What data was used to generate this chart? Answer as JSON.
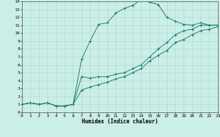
{
  "xlabel": "Humidex (Indice chaleur)",
  "xlim": [
    0,
    23
  ],
  "ylim": [
    0,
    14
  ],
  "xticks": [
    0,
    1,
    2,
    3,
    4,
    5,
    6,
    7,
    8,
    9,
    10,
    11,
    12,
    13,
    14,
    15,
    16,
    17,
    18,
    19,
    20,
    21,
    22,
    23
  ],
  "yticks": [
    0,
    1,
    2,
    3,
    4,
    5,
    6,
    7,
    8,
    9,
    10,
    11,
    12,
    13,
    14
  ],
  "bg_color": "#cceee8",
  "grid_major_color": "#aaddcc",
  "grid_minor_color": "#bbddd8",
  "line_color": "#1a7a6a",
  "line1_x": [
    0,
    1,
    2,
    3,
    4,
    5,
    6,
    7,
    8,
    9,
    10,
    11,
    12,
    13,
    14,
    15,
    16,
    17,
    18,
    19,
    20,
    21,
    22,
    23
  ],
  "line1_y": [
    1.0,
    1.2,
    1.0,
    1.2,
    0.8,
    0.8,
    1.0,
    6.7,
    9.0,
    11.1,
    11.3,
    12.5,
    13.1,
    13.5,
    14.2,
    13.9,
    13.6,
    12.0,
    11.5,
    11.1,
    11.0,
    11.3,
    11.0,
    11.0
  ],
  "line2_x": [
    0,
    1,
    2,
    3,
    4,
    5,
    6,
    7,
    8,
    9,
    10,
    11,
    12,
    13,
    14,
    15,
    16,
    17,
    18,
    19,
    20,
    21,
    22,
    23
  ],
  "line2_y": [
    1.0,
    1.2,
    1.0,
    1.2,
    0.8,
    0.8,
    1.0,
    4.5,
    4.3,
    4.5,
    4.5,
    4.8,
    5.0,
    5.5,
    6.0,
    7.0,
    8.0,
    8.8,
    9.8,
    10.3,
    10.5,
    11.0,
    11.0,
    11.0
  ],
  "line3_x": [
    0,
    1,
    2,
    3,
    4,
    5,
    6,
    7,
    8,
    9,
    10,
    11,
    12,
    13,
    14,
    15,
    16,
    17,
    18,
    19,
    20,
    21,
    22,
    23
  ],
  "line3_y": [
    1.0,
    1.2,
    1.0,
    1.2,
    0.8,
    0.8,
    1.0,
    2.8,
    3.2,
    3.5,
    3.8,
    4.2,
    4.5,
    5.0,
    5.5,
    6.5,
    7.2,
    7.8,
    8.8,
    9.2,
    9.8,
    10.3,
    10.5,
    10.8
  ]
}
